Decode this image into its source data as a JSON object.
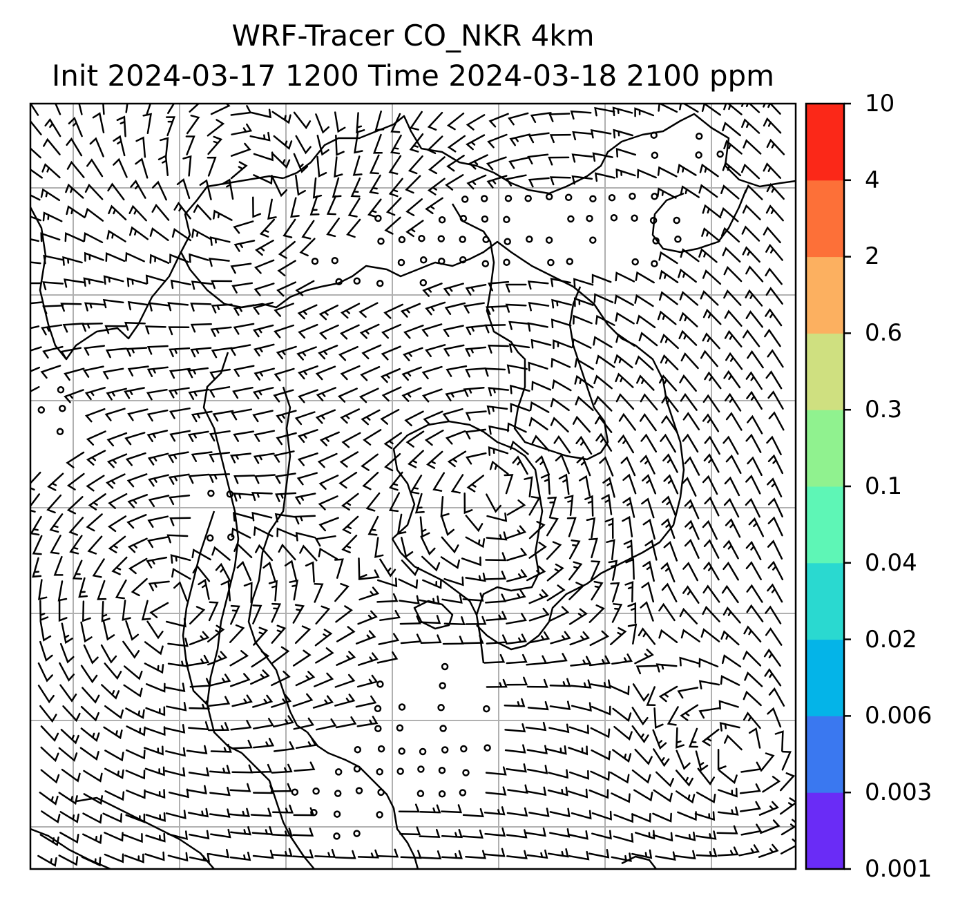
{
  "title": {
    "line1": "WRF-Tracer CO_NKR 4km",
    "line2": "Init 2024-03-17 1200 Time 2024-03-18 2100 ppm"
  },
  "colorbar": {
    "levels": [
      "0.001",
      "0.003",
      "0.006",
      "0.02",
      "0.04",
      "0.1",
      "0.3",
      "0.6",
      "2",
      "4",
      "10"
    ],
    "colors": [
      "#6a2cf6",
      "#3a78f0",
      "#04b4e8",
      "#2ad9d0",
      "#5ef6b6",
      "#90f28f",
      "#cfe080",
      "#fcb060",
      "#fd7038",
      "#fb2818"
    ]
  },
  "map": {
    "gridline_color": "#b0b0b0",
    "coastline_color": "#000000",
    "wind_barb_color": "#000000"
  }
}
